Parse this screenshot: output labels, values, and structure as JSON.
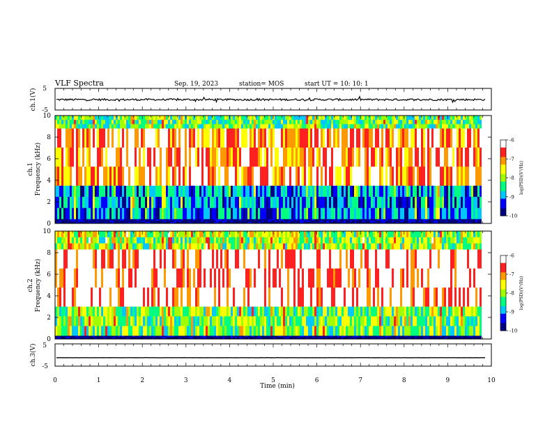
{
  "header": {
    "title": "VLF Spectra",
    "date": "Sep. 19, 2023",
    "station": "station= MOS",
    "start": "start  UT =   10: 10: 1"
  },
  "chart_data": [
    {
      "id": "ch1-waveform",
      "type": "line",
      "ylabel": "ch.1(V)",
      "ylim": [
        -5,
        5
      ],
      "yticks": [
        "5",
        "-5"
      ],
      "xlim": [
        0,
        10
      ],
      "line_color": "#000000",
      "mean_value": -0.2
    },
    {
      "id": "ch1-spectrogram",
      "type": "heatmap",
      "ylabel": "ch.1",
      "ylabel2": "Frequency (kHz)",
      "ylim": [
        0,
        10
      ],
      "yticks": [
        "0",
        "2",
        "4",
        "6",
        "8",
        "10"
      ],
      "xlim": [
        0,
        10
      ],
      "colorbar": {
        "label": "log(PSD)(V²/Hz)",
        "range": [
          -10,
          -6
        ],
        "ticks": [
          "-6",
          "-7",
          "-8",
          "-9",
          "-10"
        ],
        "colors": [
          "#000080",
          "#0000ff",
          "#00c8ff",
          "#00ff80",
          "#a0ff00",
          "#ffff00",
          "#ff9900",
          "#ff2020",
          "#ffffff"
        ]
      },
      "bands": [
        {
          "f_low": 8.8,
          "f_high": 10.0,
          "level": -8.3
        },
        {
          "f_low": 3.5,
          "f_high": 8.8,
          "level": -6.8
        },
        {
          "f_low": 0.4,
          "f_high": 3.5,
          "level": -9.0
        },
        {
          "f_low": 0.0,
          "f_high": 0.4,
          "level": -10.0
        }
      ]
    },
    {
      "id": "ch2-spectrogram",
      "type": "heatmap",
      "ylabel": "ch.2",
      "ylabel2": "Frequency (kHz)",
      "ylim": [
        0,
        10
      ],
      "yticks": [
        "0",
        "2",
        "4",
        "6",
        "8",
        "10"
      ],
      "xlim": [
        0,
        10
      ],
      "colorbar": {
        "label": "log(PSD)(V²/Hz)",
        "range": [
          -10,
          -6
        ],
        "ticks": [
          "-6",
          "-7",
          "-8",
          "-9",
          "-10"
        ],
        "colors": [
          "#000080",
          "#0000ff",
          "#00c8ff",
          "#00ff80",
          "#a0ff00",
          "#ffff00",
          "#ff9900",
          "#ff2020",
          "#ffffff"
        ]
      },
      "bands": [
        {
          "f_low": 8.3,
          "f_high": 10.0,
          "level": -8.0
        },
        {
          "f_low": 3.0,
          "f_high": 8.3,
          "level": -6.3
        },
        {
          "f_low": 0.3,
          "f_high": 3.0,
          "level": -8.2
        },
        {
          "f_low": 0.0,
          "f_high": 0.3,
          "level": -10.0
        }
      ]
    },
    {
      "id": "ch3-waveform",
      "type": "line",
      "ylabel": "ch.3(V)",
      "ylim": [
        -5,
        5
      ],
      "yticks": [
        "5",
        "-5"
      ],
      "xlim": [
        0,
        10
      ],
      "line_color": "#000000",
      "mean_value": -1.2
    }
  ],
  "xaxis": {
    "label": "Time  (min)",
    "ticks": [
      "0",
      "1",
      "2",
      "3",
      "4",
      "5",
      "6",
      "7",
      "8",
      "9",
      "10"
    ]
  }
}
